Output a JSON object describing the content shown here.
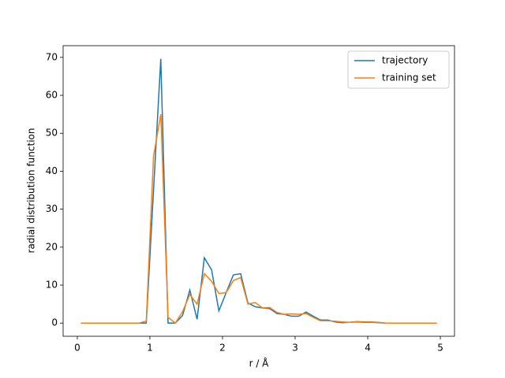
{
  "chart_data": {
    "type": "line",
    "x_label": "r / Å",
    "y_label": "radial distribution function",
    "x": [
      0.05,
      0.15,
      0.25,
      0.35,
      0.45,
      0.55,
      0.65,
      0.75,
      0.85,
      0.95,
      1.05,
      1.15,
      1.25,
      1.35,
      1.45,
      1.55,
      1.65,
      1.75,
      1.85,
      1.95,
      2.05,
      2.15,
      2.25,
      2.35,
      2.45,
      2.55,
      2.65,
      2.75,
      2.85,
      2.95,
      3.05,
      3.15,
      3.25,
      3.35,
      3.45,
      3.55,
      3.65,
      3.75,
      3.85,
      3.95,
      4.05,
      4.15,
      4.25,
      4.35,
      4.45,
      4.55,
      4.65,
      4.75,
      4.85,
      4.95
    ],
    "series": [
      {
        "name": "trajectory",
        "color": "#1f77b4",
        "values": [
          0,
          0,
          0,
          0,
          0,
          0,
          0,
          0,
          0,
          0,
          35,
          69.6,
          0,
          0,
          2,
          8.7,
          1,
          17.2,
          14,
          3.2,
          8,
          12.7,
          13,
          5.3,
          4.3,
          4,
          3.8,
          2.5,
          2.3,
          1.8,
          1.8,
          2.9,
          1.8,
          0.8,
          0.8,
          0.3,
          0.1,
          0.2,
          0.3,
          0.2,
          0.2,
          0.1,
          0,
          0,
          0,
          0,
          0,
          0,
          0,
          0
        ]
      },
      {
        "name": "training set",
        "color": "#ff7f0e",
        "values": [
          0,
          0,
          0,
          0,
          0,
          0,
          0,
          0,
          0,
          0.5,
          44,
          55,
          1.5,
          0,
          3,
          7.5,
          5,
          13,
          11,
          7.8,
          8,
          11.2,
          12,
          5,
          5.4,
          4,
          4.1,
          2.8,
          2.3,
          2.4,
          2.3,
          2.5,
          1.5,
          0.6,
          0.6,
          0.5,
          0.3,
          0.2,
          0.4,
          0.3,
          0.3,
          0.2,
          0,
          0,
          0,
          0,
          0,
          0,
          0,
          0
        ]
      }
    ],
    "xlim": [
      -0.195,
      5.195
    ],
    "xticks": [
      0,
      1,
      2,
      3,
      4,
      5
    ],
    "ylim": [
      -3.48,
      73.08
    ],
    "yticks": [
      0,
      10,
      20,
      30,
      40,
      50,
      60,
      70
    ],
    "legend": "upper right"
  }
}
